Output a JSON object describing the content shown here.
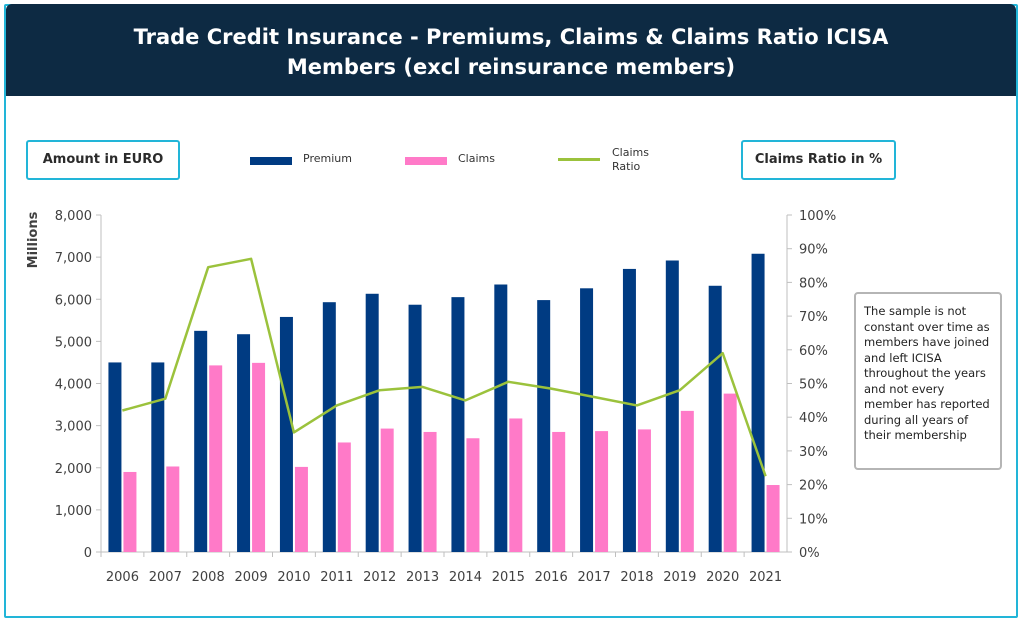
{
  "header": {
    "title_line1": "Trade Credit Insurance - Premiums, Claims & Claims Ratio ICISA",
    "title_line2": "Members (excl reinsurance members)"
  },
  "left_box": "Amount in EURO",
  "right_box": "Claims Ratio in %",
  "note": "The sample is not constant over time as members have joined and left ICISA throughout the years and not every member has reported during all years of their membership",
  "chart_data": {
    "type": "bar",
    "categories": [
      "2006",
      "2007",
      "2008",
      "2009",
      "2010",
      "2011",
      "2012",
      "2013",
      "2014",
      "2015",
      "2016",
      "2017",
      "2018",
      "2019",
      "2020",
      "2021"
    ],
    "series": [
      {
        "name": "Premium",
        "type": "bar",
        "axis": "left",
        "color": "#003b82",
        "values": [
          4500,
          4500,
          5250,
          5170,
          5580,
          5930,
          6130,
          5870,
          6050,
          6350,
          5980,
          6260,
          6720,
          6920,
          6320,
          7080
        ]
      },
      {
        "name": "Claims",
        "type": "bar",
        "axis": "left",
        "color": "#ff7ac8",
        "values": [
          1900,
          2030,
          4430,
          4490,
          2020,
          2600,
          2930,
          2850,
          2700,
          3170,
          2850,
          2870,
          2910,
          3350,
          3760,
          1590
        ]
      },
      {
        "name": "Claims Ratio",
        "type": "line",
        "axis": "right",
        "color": "#9bc23c",
        "values": [
          42,
          45.5,
          84.5,
          87,
          35.5,
          43.5,
          48,
          49,
          45,
          50.5,
          48.5,
          46,
          43.5,
          48,
          59,
          22.5
        ]
      }
    ],
    "legend_labels": {
      "premium": "Premium",
      "claims": "Claims",
      "ratio_line1": "Claims",
      "ratio_line2": "Ratio"
    },
    "ylabel": "Millions",
    "ylim": [
      0,
      8000
    ],
    "yticks": [
      "0",
      "1,000",
      "2,000",
      "3,000",
      "4,000",
      "5,000",
      "6,000",
      "7,000",
      "8,000"
    ],
    "y2lim": [
      0,
      100
    ],
    "y2ticks": [
      "0%",
      "10%",
      "20%",
      "30%",
      "40%",
      "50%",
      "60%",
      "70%",
      "80%",
      "90%",
      "100%"
    ],
    "grid": false,
    "legend_position": "top"
  }
}
